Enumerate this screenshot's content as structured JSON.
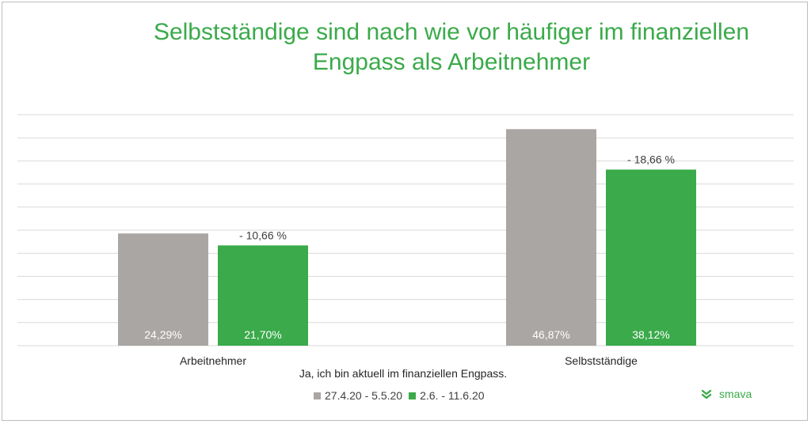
{
  "title_line1": "Selbstständige sind nach wie vor häufiger im finanziellen",
  "title_line2": "Engpass als Arbeitnehmer",
  "brand": {
    "name": "smava",
    "color": "#3aaa4a"
  },
  "chart_data": {
    "type": "bar",
    "title": "Selbstständige sind nach wie vor häufiger im finanziellen Engpass als Arbeitnehmer",
    "xlabel": "Ja, ich bin aktuell im finanziellen Engpass.",
    "ylabel": "",
    "ylim": [
      0,
      50
    ],
    "grid": true,
    "legend_position": "bottom",
    "categories": [
      "Arbeitnehmer",
      "Selbstständige"
    ],
    "series": [
      {
        "name": "27.4.20 - 5.5.20",
        "color": "#aaa6a4",
        "values": [
          24.29,
          46.87
        ],
        "labels": [
          "24,29%",
          "46,87%"
        ]
      },
      {
        "name": "2.6. - 11.6.20",
        "color": "#3aaa4a",
        "values": [
          21.7,
          38.12
        ],
        "labels": [
          "21,70%",
          "38,12%"
        ]
      }
    ],
    "annotations": [
      "- 10,66 %",
      "- 18,66 %"
    ]
  }
}
